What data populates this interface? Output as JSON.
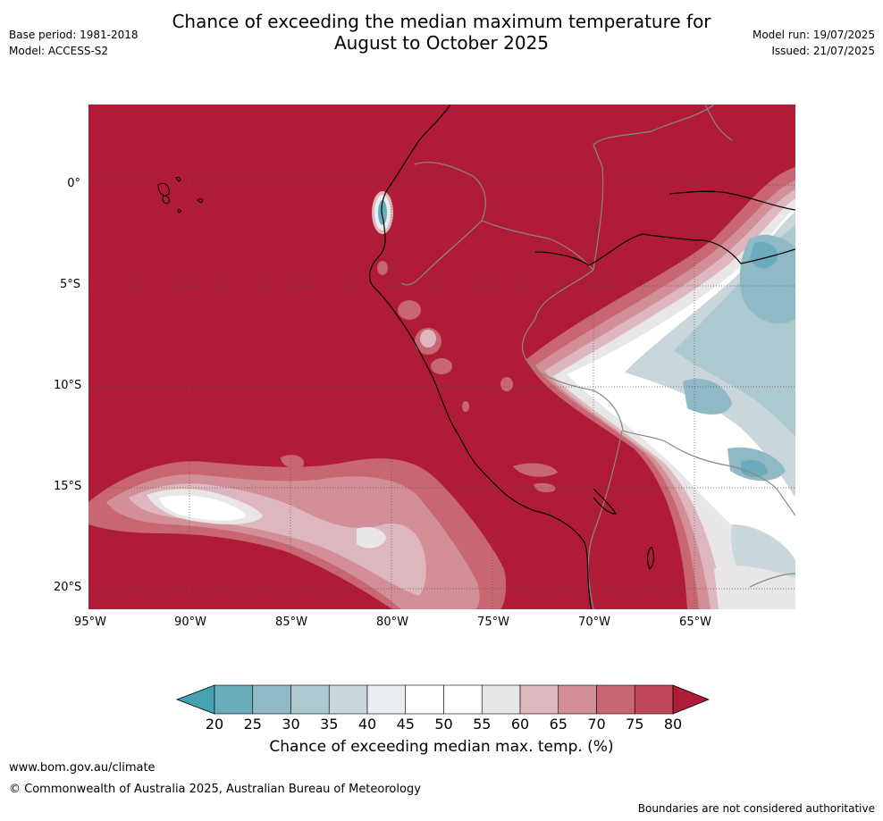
{
  "header": {
    "title_line1": "Chance of exceeding the median maximum temperature for",
    "title_line2": "August to October 2025",
    "base_period": "Base period: 1981-2018",
    "model": "Model: ACCESS-S2",
    "model_run": "Model run: 19/07/2025",
    "issued": "Issued: 21/07/2025"
  },
  "map": {
    "lat_labels": [
      "0°",
      "5°S",
      "10°S",
      "15°S",
      "20°S"
    ],
    "lon_labels": [
      "95°W",
      "90°W",
      "85°W",
      "80°W",
      "75°W",
      "70°W",
      "65°W"
    ],
    "background_color": "#b01c37"
  },
  "colorbar": {
    "title": "Chance of exceeding median max. temp. (%)",
    "labels": [
      "20",
      "25",
      "30",
      "35",
      "40",
      "45",
      "50",
      "55",
      "60",
      "65",
      "70",
      "75",
      "80"
    ],
    "colors": [
      "#46a2b1",
      "#6aacbb",
      "#8fb9c5",
      "#adc9d0",
      "#c9d7dc",
      "#e8edef",
      "#ffffff",
      "#ffffff",
      "#e8e6e7",
      "#ddb7bd",
      "#d38f97",
      "#c86671",
      "#bf4657",
      "#b01c37"
    ]
  },
  "footer": {
    "url": "www.bom.gov.au/climate",
    "copyright": "© Commonwealth of Australia 2025, Australian Bureau of Meteorology",
    "disclaimer": "Boundaries are not considered authoritative"
  }
}
